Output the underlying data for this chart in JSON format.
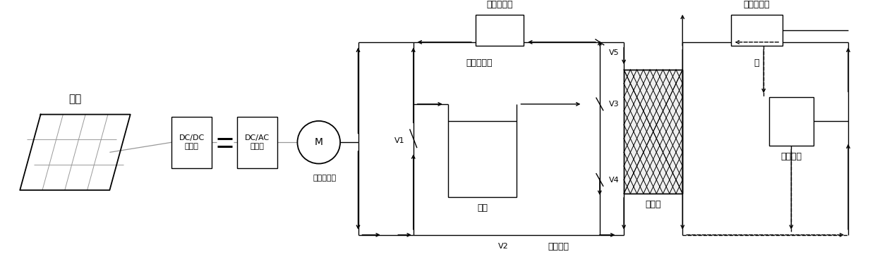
{
  "bg": "#ffffff",
  "lc": "#000000",
  "gc": "#999999",
  "labels": {
    "guangfu": "光伏",
    "dcdc": "DC/DC\n变换器",
    "dcac": "DC/AC\n变换器",
    "motor": "M",
    "shuanggong": "双工况机组",
    "pump1": "第一冷冻泵",
    "ethanol": "乙二醇溶液",
    "pump2": "第二冷冻泵",
    "water": "水",
    "heat_ex": "换热板",
    "cold_end": "供冷末端",
    "ice_tank": "冰桶",
    "air_cond": "空调机房",
    "V1": "V1",
    "V2": "V2",
    "V3": "V3",
    "V4": "V4",
    "V5": "V5"
  }
}
